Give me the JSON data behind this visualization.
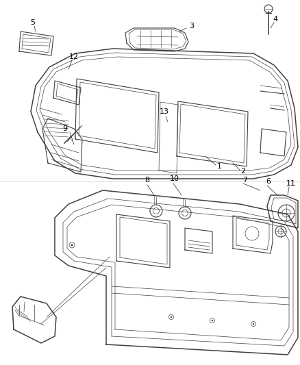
{
  "background_color": "#ffffff",
  "line_color": "#404040",
  "label_color": "#000000",
  "figure_width": 4.38,
  "figure_height": 5.33,
  "dpi": 100
}
